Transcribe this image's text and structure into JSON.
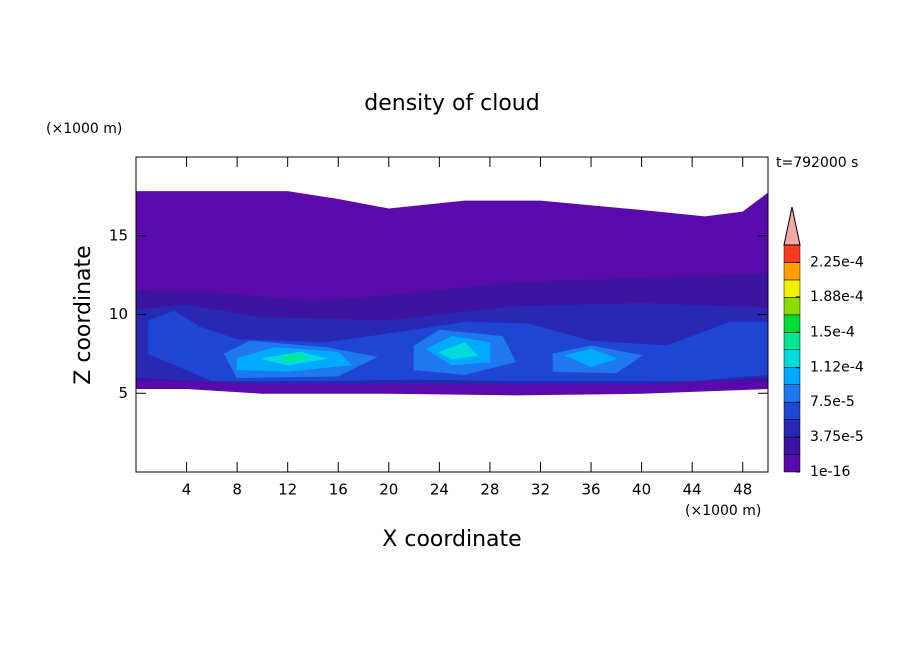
{
  "chart_data": {
    "type": "contour",
    "title": "density of cloud",
    "xlabel": "X coordinate",
    "ylabel": "Z coordinate",
    "x_unit": "(×1000 m)",
    "y_unit": "(×1000 m)",
    "annotation": "t=792000 s",
    "xlim": [
      0,
      50
    ],
    "ylim": [
      0,
      20
    ],
    "xticks": [
      4,
      8,
      12,
      16,
      20,
      24,
      28,
      32,
      36,
      40,
      44,
      48
    ],
    "yticks": [
      5,
      10,
      15
    ],
    "colorbar": {
      "levels": [
        1e-16,
        1.875e-05,
        3.75e-05,
        5.625e-05,
        7.5e-05,
        9.375e-05,
        0.0001125,
        0.00013125,
        0.00015,
        0.00016875,
        0.0001875,
        0.00020625,
        0.000225,
        0.00024375
      ],
      "colors": [
        "#5a0aaa",
        "#3c14a0",
        "#2828b4",
        "#1e46d2",
        "#1e78f0",
        "#00aaff",
        "#00dcdc",
        "#00e696",
        "#00dc32",
        "#8cdc00",
        "#f0f000",
        "#ffa000",
        "#ff3c1e"
      ],
      "over_color": "#f4a8a8",
      "ticks": [
        {
          "value": 1e-16,
          "label": "1e-16"
        },
        {
          "value": 3.75e-05,
          "label": "3.75e-5"
        },
        {
          "value": 7.5e-05,
          "label": "7.5e-5"
        },
        {
          "value": 0.000112,
          "label": "1.12e-4"
        },
        {
          "value": 0.00015,
          "label": "1.5e-4"
        },
        {
          "value": 0.000188,
          "label": "1.88e-4"
        },
        {
          "value": 0.000225,
          "label": "2.25e-4"
        }
      ]
    },
    "regions": [
      {
        "level": 1e-16,
        "points": [
          [
            0,
            17.8
          ],
          [
            12,
            17.8
          ],
          [
            16,
            17.3
          ],
          [
            20,
            16.7
          ],
          [
            26,
            17.2
          ],
          [
            32,
            17.2
          ],
          [
            40,
            16.6
          ],
          [
            45,
            16.2
          ],
          [
            48,
            16.5
          ],
          [
            50,
            17.7
          ],
          [
            50,
            5.3
          ],
          [
            40,
            5.0
          ],
          [
            30,
            4.9
          ],
          [
            20,
            5.0
          ],
          [
            10,
            5.0
          ],
          [
            4,
            5.3
          ],
          [
            0,
            5.3
          ]
        ]
      },
      {
        "level": 1.875e-05,
        "points": [
          [
            0,
            11.5
          ],
          [
            6,
            11.4
          ],
          [
            14,
            10.8
          ],
          [
            20,
            11.2
          ],
          [
            30,
            12.0
          ],
          [
            40,
            12.3
          ],
          [
            50,
            12.6
          ],
          [
            50,
            5.8
          ],
          [
            0,
            5.8
          ]
        ]
      },
      {
        "level": 3.75e-05,
        "points": [
          [
            0,
            10.3
          ],
          [
            4,
            10.6
          ],
          [
            10,
            9.8
          ],
          [
            20,
            9.6
          ],
          [
            30,
            10.5
          ],
          [
            40,
            10.7
          ],
          [
            50,
            10.4
          ],
          [
            50,
            6.0
          ],
          [
            40,
            5.6
          ],
          [
            30,
            5.6
          ],
          [
            20,
            5.6
          ],
          [
            10,
            5.6
          ],
          [
            0,
            6.0
          ]
        ]
      },
      {
        "level": 5.625e-05,
        "points": [
          [
            1,
            9.6
          ],
          [
            3,
            10.2
          ],
          [
            5,
            9.2
          ],
          [
            8,
            8.4
          ],
          [
            15,
            8.2
          ],
          [
            22,
            9.0
          ],
          [
            26,
            9.5
          ],
          [
            31,
            9.4
          ],
          [
            36,
            8.3
          ],
          [
            42,
            8.0
          ],
          [
            47,
            9.5
          ],
          [
            50,
            9.5
          ],
          [
            50,
            6.2
          ],
          [
            44,
            5.8
          ],
          [
            36,
            5.8
          ],
          [
            30,
            5.8
          ],
          [
            22,
            5.9
          ],
          [
            14,
            5.8
          ],
          [
            6,
            5.8
          ],
          [
            4,
            6.5
          ],
          [
            1,
            7.5
          ]
        ]
      },
      {
        "level": 7.5e-05,
        "points": [
          [
            7,
            7.5
          ],
          [
            9,
            8.3
          ],
          [
            15,
            7.9
          ],
          [
            19,
            7.3
          ],
          [
            16,
            6.1
          ],
          [
            8,
            6.0
          ]
        ]
      },
      {
        "level": 7.5e-05,
        "points": [
          [
            22,
            8.0
          ],
          [
            24,
            9.0
          ],
          [
            29,
            8.6
          ],
          [
            30,
            7.0
          ],
          [
            26,
            6.2
          ],
          [
            22,
            6.5
          ]
        ]
      },
      {
        "level": 7.5e-05,
        "points": [
          [
            33,
            7.5
          ],
          [
            36,
            8.0
          ],
          [
            40,
            7.4
          ],
          [
            38,
            6.3
          ],
          [
            33,
            6.4
          ]
        ]
      },
      {
        "level": 9.375e-05,
        "points": [
          [
            8,
            7.2
          ],
          [
            11,
            7.9
          ],
          [
            16,
            7.6
          ],
          [
            17,
            6.8
          ],
          [
            12,
            6.4
          ],
          [
            8,
            6.5
          ]
        ]
      },
      {
        "level": 9.375e-05,
        "points": [
          [
            23,
            7.8
          ],
          [
            25,
            8.6
          ],
          [
            28,
            8.2
          ],
          [
            28,
            7.0
          ],
          [
            25,
            6.8
          ]
        ]
      },
      {
        "level": 9.375e-05,
        "points": [
          [
            34,
            7.4
          ],
          [
            36,
            7.8
          ],
          [
            38,
            7.2
          ],
          [
            36,
            6.7
          ]
        ]
      },
      {
        "level": 0.0001125,
        "points": [
          [
            10,
            7.2
          ],
          [
            13,
            7.6
          ],
          [
            15,
            7.2
          ],
          [
            12,
            6.8
          ]
        ]
      },
      {
        "level": 0.0001125,
        "points": [
          [
            24,
            7.6
          ],
          [
            26,
            8.2
          ],
          [
            27,
            7.4
          ],
          [
            25,
            7.2
          ]
        ]
      },
      {
        "level": 0.00013125,
        "points": [
          [
            11.5,
            7.3
          ],
          [
            13,
            7.5
          ],
          [
            13.5,
            7.2
          ],
          [
            12,
            7.0
          ]
        ]
      }
    ]
  }
}
